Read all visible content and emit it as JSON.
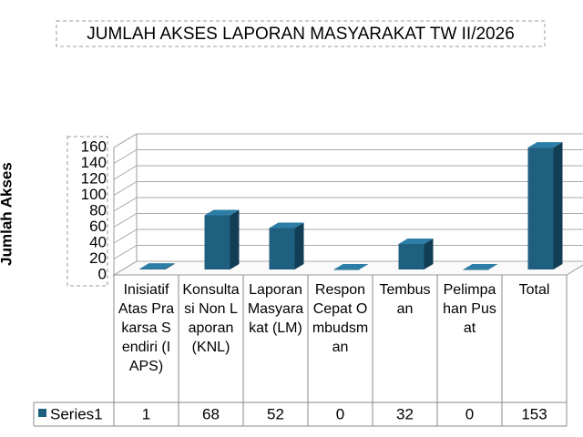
{
  "chart_data": {
    "type": "bar",
    "title": "JUMLAH AKSES LAPORAN MASYARAKAT TW II/2026",
    "y_label": "Jumlah Akses",
    "categories": [
      "Inisiatif Atas Prakarsa Sendiri (IAPS)",
      "Konsultasi Non Laporan (KNL)",
      "Laporan Masyarakat (LM)",
      "Respon Cepat Ombudsman",
      "Tembusan",
      "Pelimpahan Pusat",
      "Total"
    ],
    "series": [
      {
        "name": "Series1",
        "color": "#1f5f80",
        "values": [
          1,
          68,
          52,
          0,
          32,
          0,
          153
        ]
      }
    ],
    "ylim": [
      0,
      160
    ],
    "yticks": [
      0,
      20,
      40,
      60,
      80,
      100,
      120,
      140,
      160
    ],
    "grid": true
  }
}
